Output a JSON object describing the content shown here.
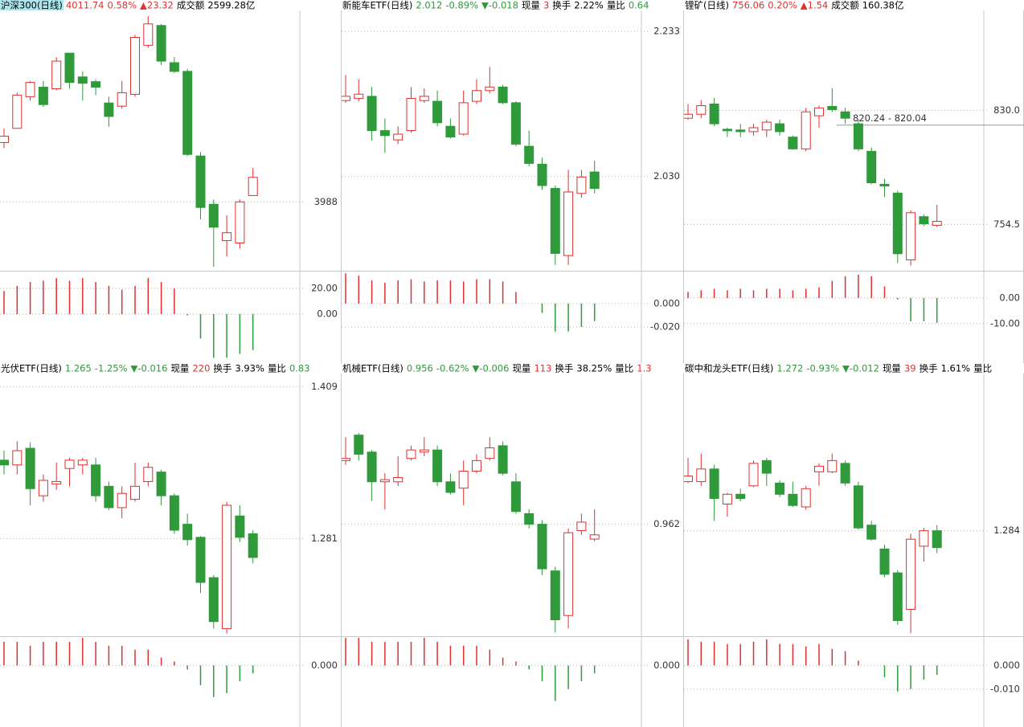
{
  "panels": [
    {
      "header": [
        {
          "text": "沪深300(日线)",
          "color": "#000000"
        },
        {
          "text": "4011.74",
          "color": "#e03030"
        },
        {
          "text": "0.58%",
          "color": "#e03030"
        },
        {
          "text": "▲23.32",
          "color": "#e03030"
        },
        {
          "text": "成交额",
          "color": "#000000"
        },
        {
          "text": "2599.28亿",
          "color": "#000000"
        }
      ],
      "candles": {
        "open": [
          4048.0,
          4062.4,
          4094.4,
          4104.0,
          4102.4,
          4138.4,
          4114.4,
          4109.6,
          4088.0,
          4084.8,
          4096.8,
          4146.4,
          4166.4,
          4128.8,
          4120.0,
          4034.4,
          3985.6,
          3948.8,
          3946.4,
          3994.4
        ],
        "high": [
          4062.4,
          4098.4,
          4110.4,
          4110.4,
          4134.4,
          4138.4,
          4120.0,
          4112.0,
          4094.4,
          4110.4,
          4156.8,
          4176.0,
          4168.0,
          4134.4,
          4122.4,
          4038.4,
          3990.4,
          3974.4,
          3990.4,
          4022.4
        ],
        "low": [
          4042.4,
          4062.4,
          4090.4,
          4084.0,
          4100.8,
          4102.4,
          4090.4,
          4096.0,
          4064.0,
          4082.4,
          4094.4,
          4144.0,
          4126.4,
          4118.4,
          4034.4,
          3970.4,
          3922.4,
          3932.8,
          3940.8,
          3994.4
        ],
        "close": [
          4054.4,
          4096.0,
          4108.8,
          4086.4,
          4130.4,
          4108.8,
          4108.0,
          4104.0,
          4074.4,
          4098.4,
          4154.4,
          4168.0,
          4130.4,
          4120.0,
          4036.0,
          3982.4,
          3962.4,
          3956.8,
          3988.0,
          4012.8
        ]
      },
      "ylim": [
        3920,
        4180
      ],
      "yticks": [
        3988
      ],
      "macd": {
        "values": [
          18,
          22,
          25,
          26,
          28,
          26,
          28,
          25,
          22,
          19,
          22,
          28,
          25,
          20,
          -1,
          -19,
          -34,
          -34,
          -31,
          -28
        ],
        "ylim": [
          -36.9,
          31.9
        ],
        "yticks": [
          {
            "value": 20,
            "label": "20.00"
          },
          {
            "value": 0,
            "label": "0.00"
          }
        ]
      },
      "up_color": "#e03030",
      "down_color": "#2e9a3a"
    },
    {
      "header": [
        {
          "text": "新能车ETF(日线)",
          "color": "#000000"
        },
        {
          "text": "2.012",
          "color": "#2e9a3a"
        },
        {
          "text": "-0.89%",
          "color": "#2e9a3a"
        },
        {
          "text": "▼-0.018",
          "color": "#2e9a3a"
        },
        {
          "text": "现量",
          "color": "#000000"
        },
        {
          "text": "3",
          "color": "#e03030"
        },
        {
          "text": "换手",
          "color": "#000000"
        },
        {
          "text": "2.22%",
          "color": "#000000"
        },
        {
          "text": "量比",
          "color": "#000000"
        },
        {
          "text": "0.64",
          "color": "#2e9a3a"
        }
      ],
      "candles": {
        "open": [
          2.136,
          2.139,
          2.142,
          2.094,
          2.081,
          2.094,
          2.136,
          2.135,
          2.1,
          2.089,
          2.135,
          2.15,
          2.155,
          2.133,
          2.072,
          2.047,
          2.013,
          1.919,
          2.006,
          2.036
        ],
        "high": [
          2.172,
          2.166,
          2.155,
          2.111,
          2.1,
          2.155,
          2.153,
          2.15,
          2.111,
          2.15,
          2.166,
          2.183,
          2.158,
          2.135,
          2.094,
          2.056,
          2.017,
          2.039,
          2.039,
          2.052
        ],
        "low": [
          2.133,
          2.135,
          2.08,
          2.063,
          2.075,
          2.091,
          2.133,
          2.1,
          2.083,
          2.087,
          2.131,
          2.146,
          2.131,
          2.072,
          2.044,
          2.011,
          1.906,
          1.906,
          2.0,
          2.006
        ],
        "close": [
          2.142,
          2.145,
          2.094,
          2.087,
          2.089,
          2.139,
          2.142,
          2.105,
          2.085,
          2.133,
          2.15,
          2.155,
          2.133,
          2.075,
          2.048,
          2.017,
          1.922,
          2.008,
          2.029,
          2.013
        ]
      },
      "ylim": [
        1.9,
        2.26
      ],
      "yticks": [
        2.233,
        {
          "value": 2.03,
          "label": "2.030"
        }
      ],
      "macd": {
        "values": [
          0.026,
          0.024,
          0.02,
          0.018,
          0.02,
          0.021,
          0.019,
          0.02,
          0.02,
          0.019,
          0.021,
          0.021,
          0.019,
          0.01,
          0,
          -0.008,
          -0.024,
          -0.024,
          -0.02,
          -0.015
        ],
        "ylim": [
          -0.0497,
          0.0262
        ],
        "yticks": [
          {
            "value": 0,
            "label": "0.000"
          },
          {
            "value": -0.02,
            "label": "-0.020"
          }
        ]
      },
      "up_color": "#e03030",
      "down_color": "#2e9a3a"
    },
    {
      "header": [
        {
          "text": "锂矿(日线)",
          "color": "#000000"
        },
        {
          "text": "756.06",
          "color": "#e03030"
        },
        {
          "text": "0.20%",
          "color": "#e03030"
        },
        {
          "text": "▲1.54",
          "color": "#e03030"
        },
        {
          "text": "成交额",
          "color": "#000000"
        },
        {
          "text": "160.38亿",
          "color": "#000000"
        }
      ],
      "candles": {
        "open": [
          824.8,
          827.4,
          834.2,
          817.5,
          817.0,
          815.9,
          817.0,
          821.1,
          812.3,
          804.5,
          826.4,
          832.6,
          829.0,
          821.1,
          802.9,
          781.1,
          775.3,
          731.1,
          759.7,
          754.0
        ],
        "high": [
          834.2,
          836.8,
          838.3,
          818.5,
          821.1,
          821.1,
          823.8,
          823.8,
          813.3,
          831.6,
          833.1,
          844.6,
          831.6,
          823.8,
          805.5,
          784.7,
          776.9,
          763.9,
          761.3,
          767.5
        ],
        "low": [
          823.8,
          824.8,
          819.6,
          812.3,
          812.3,
          813.3,
          812.3,
          813.3,
          804.0,
          802.9,
          818.5,
          829.0,
          821.1,
          802.9,
          781.1,
          772.7,
          729.0,
          727.4,
          753.5,
          752.9
        ],
        "close": [
          827.4,
          833.1,
          821.1,
          816.5,
          815.9,
          818.5,
          822.2,
          815.9,
          804.5,
          829.0,
          831.6,
          830.5,
          824.8,
          804.5,
          782.1,
          780.0,
          735.2,
          762.3,
          755.0,
          756.6
        ]
      },
      "ylim": [
        725,
        895
      ],
      "yticks": [
        {
          "value": 830,
          "label": "830.0"
        },
        754.5
      ],
      "annotation": {
        "text": "820.24 - 820.04",
        "value": 820.24
      },
      "macd": {
        "values": [
          2.4,
          3.0,
          3.6,
          3.0,
          3.6,
          3.0,
          3.6,
          3.6,
          3.0,
          3.6,
          4.2,
          6.7,
          8.5,
          9.1,
          8.5,
          4.5,
          -0.6,
          -9.1,
          -9.1,
          -9.7
        ],
        "ylim": [
          -24.8,
          9.7
        ],
        "yticks": [
          {
            "value": 0,
            "label": "0.00"
          },
          {
            "value": -10,
            "label": "-10.00"
          }
        ]
      },
      "up_color": "#e03030",
      "down_color": "#2e9a3a"
    },
    {
      "header": [
        {
          "text": "光伏ETF(日线)",
          "color": "#000000"
        },
        {
          "text": "1.265",
          "color": "#2e9a3a"
        },
        {
          "text": "-1.25%",
          "color": "#2e9a3a"
        },
        {
          "text": "▼-0.016",
          "color": "#2e9a3a"
        },
        {
          "text": "现量",
          "color": "#000000"
        },
        {
          "text": "220",
          "color": "#e03030"
        },
        {
          "text": "换手",
          "color": "#000000"
        },
        {
          "text": "3.93%",
          "color": "#000000"
        },
        {
          "text": "量比",
          "color": "#000000"
        },
        {
          "text": "0.83",
          "color": "#2e9a3a"
        }
      ],
      "candles": {
        "open": [
          1.347,
          1.343,
          1.357,
          1.317,
          1.327,
          1.34,
          1.343,
          1.343,
          1.325,
          1.307,
          1.314,
          1.329,
          1.337,
          1.317,
          1.293,
          1.282,
          1.248,
          1.205,
          1.3,
          1.285
        ],
        "high": [
          1.355,
          1.363,
          1.362,
          1.335,
          1.345,
          1.349,
          1.349,
          1.349,
          1.329,
          1.325,
          1.345,
          1.345,
          1.339,
          1.319,
          1.302,
          1.283,
          1.25,
          1.312,
          1.309,
          1.288
        ],
        "low": [
          1.335,
          1.335,
          1.309,
          1.312,
          1.322,
          1.325,
          1.335,
          1.312,
          1.305,
          1.298,
          1.312,
          1.325,
          1.309,
          1.285,
          1.275,
          1.235,
          1.205,
          1.201,
          1.278,
          1.26
        ],
        "close": [
          1.343,
          1.355,
          1.323,
          1.33,
          1.329,
          1.347,
          1.347,
          1.317,
          1.307,
          1.319,
          1.325,
          1.341,
          1.317,
          1.288,
          1.28,
          1.244,
          1.211,
          1.309,
          1.282,
          1.265
        ]
      },
      "ylim": [
        1.2,
        1.42
      ],
      "yticks": [
        1.409,
        1.281
      ],
      "macd": {
        "values": [
          0.006,
          0.006,
          0.005,
          0.006,
          0.006,
          0.006,
          0.007,
          0.006,
          0.005,
          0.005,
          0.004,
          0.004,
          0.002,
          0.001,
          -0.001,
          -0.005,
          -0.008,
          -0.007,
          -0.004,
          -0.002
        ],
        "ylim": [
          -0.0156,
          0.0068
        ],
        "yticks": [
          {
            "value": 0,
            "label": "0.000"
          }
        ]
      },
      "up_color": "#e03030",
      "down_color": "#2e9a3a"
    },
    {
      "header": [
        {
          "text": "机械ETF(日线)",
          "color": "#000000"
        },
        {
          "text": "0.956",
          "color": "#2e9a3a"
        },
        {
          "text": "-0.62%",
          "color": "#2e9a3a"
        },
        {
          "text": "▼-0.006",
          "color": "#2e9a3a"
        },
        {
          "text": "现量",
          "color": "#000000"
        },
        {
          "text": "113",
          "color": "#e03030"
        },
        {
          "text": "换手",
          "color": "#000000"
        },
        {
          "text": "38.25%",
          "color": "#000000"
        },
        {
          "text": "量比",
          "color": "#000000"
        },
        {
          "text": "1.3",
          "color": "#e03030"
        }
      ],
      "candles": {
        "open": [
          0.992,
          1.004,
          0.996,
          0.982,
          0.982,
          0.993,
          0.996,
          0.997,
          0.982,
          0.979,
          0.987,
          0.993,
          0.999,
          0.982,
          0.967,
          0.962,
          0.94,
          0.919,
          0.959,
          0.955
        ],
        "high": [
          1.003,
          1.005,
          0.997,
          0.986,
          0.994,
          0.999,
          1.003,
          0.999,
          0.986,
          0.992,
          0.995,
          1.003,
          1.001,
          0.986,
          0.969,
          0.964,
          0.942,
          0.96,
          0.967,
          0.969
        ],
        "low": [
          0.99,
          0.992,
          0.973,
          0.969,
          0.98,
          0.992,
          0.994,
          0.98,
          0.976,
          0.971,
          0.986,
          0.992,
          0.985,
          0.967,
          0.96,
          0.938,
          0.911,
          0.913,
          0.957,
          0.954
        ],
        "close": [
          0.993,
          0.995,
          0.982,
          0.983,
          0.984,
          0.997,
          0.997,
          0.982,
          0.977,
          0.987,
          0.992,
          0.998,
          0.986,
          0.968,
          0.962,
          0.941,
          0.917,
          0.958,
          0.963,
          0.957
        ]
      },
      "ylim": [
        0.91,
        1.033
      ],
      "yticks": [
        0.962
      ],
      "macd": {
        "values": [
          0.007,
          0.007,
          0.006,
          0.006,
          0.006,
          0.006,
          0.007,
          0.006,
          0.005,
          0.005,
          0.005,
          0.004,
          0.002,
          0.001,
          -0.001,
          -0.004,
          -0.009,
          -0.006,
          -0.004,
          -0.002
        ],
        "ylim": [
          -0.0156,
          0.0068
        ],
        "yticks": [
          {
            "value": 0,
            "label": "0.000"
          }
        ]
      },
      "up_color": "#e03030",
      "down_color": "#2e9a3a"
    },
    {
      "header": [
        {
          "text": "碳中和龙头ETF(日线)",
          "color": "#000000"
        },
        {
          "text": "1.272",
          "color": "#2e9a3a"
        },
        {
          "text": "-0.93%",
          "color": "#2e9a3a"
        },
        {
          "text": "▼-0.012",
          "color": "#2e9a3a"
        },
        {
          "text": "现量",
          "color": "#000000"
        },
        {
          "text": "39",
          "color": "#e03030"
        },
        {
          "text": "换手",
          "color": "#000000"
        },
        {
          "text": "1.61%",
          "color": "#000000"
        },
        {
          "text": "量比",
          "color": "#000000"
        }
      ],
      "candles": {
        "open": [
          1.319,
          1.319,
          1.328,
          1.303,
          1.31,
          1.316,
          1.334,
          1.318,
          1.31,
          1.301,
          1.326,
          1.326,
          1.332,
          1.316,
          1.288,
          1.271,
          1.254,
          1.228,
          1.273,
          1.284
        ],
        "high": [
          1.336,
          1.339,
          1.331,
          1.311,
          1.314,
          1.334,
          1.336,
          1.32,
          1.319,
          1.316,
          1.332,
          1.339,
          1.334,
          1.319,
          1.291,
          1.274,
          1.256,
          1.282,
          1.286,
          1.288
        ],
        "low": [
          1.318,
          1.316,
          1.291,
          1.294,
          1.305,
          1.315,
          1.316,
          1.308,
          1.301,
          1.299,
          1.316,
          1.325,
          1.316,
          1.285,
          1.277,
          1.251,
          1.217,
          1.211,
          1.262,
          1.268
        ],
        "close": [
          1.323,
          1.328,
          1.307,
          1.31,
          1.307,
          1.332,
          1.325,
          1.31,
          1.302,
          1.314,
          1.33,
          1.334,
          1.318,
          1.286,
          1.278,
          1.253,
          1.22,
          1.278,
          1.284,
          1.272
        ]
      },
      "ylim": [
        1.21,
        1.396
      ],
      "yticks": [
        1.284
      ],
      "macd": {
        "values": [
          0.011,
          0.01,
          0.01,
          0.009,
          0.009,
          0.01,
          0.011,
          0.009,
          0.009,
          0.008,
          0.009,
          0.007,
          0.006,
          0.002,
          0,
          -0.005,
          -0.011,
          -0.01,
          -0.006,
          -0.004
        ],
        "ylim": [
          -0.026,
          0.0113
        ],
        "yticks": [
          {
            "value": 0,
            "label": "0.000"
          },
          {
            "value": -0.01,
            "label": "-0.010"
          }
        ]
      },
      "up_color": "#e03030",
      "down_color": "#2e9a3a"
    }
  ]
}
